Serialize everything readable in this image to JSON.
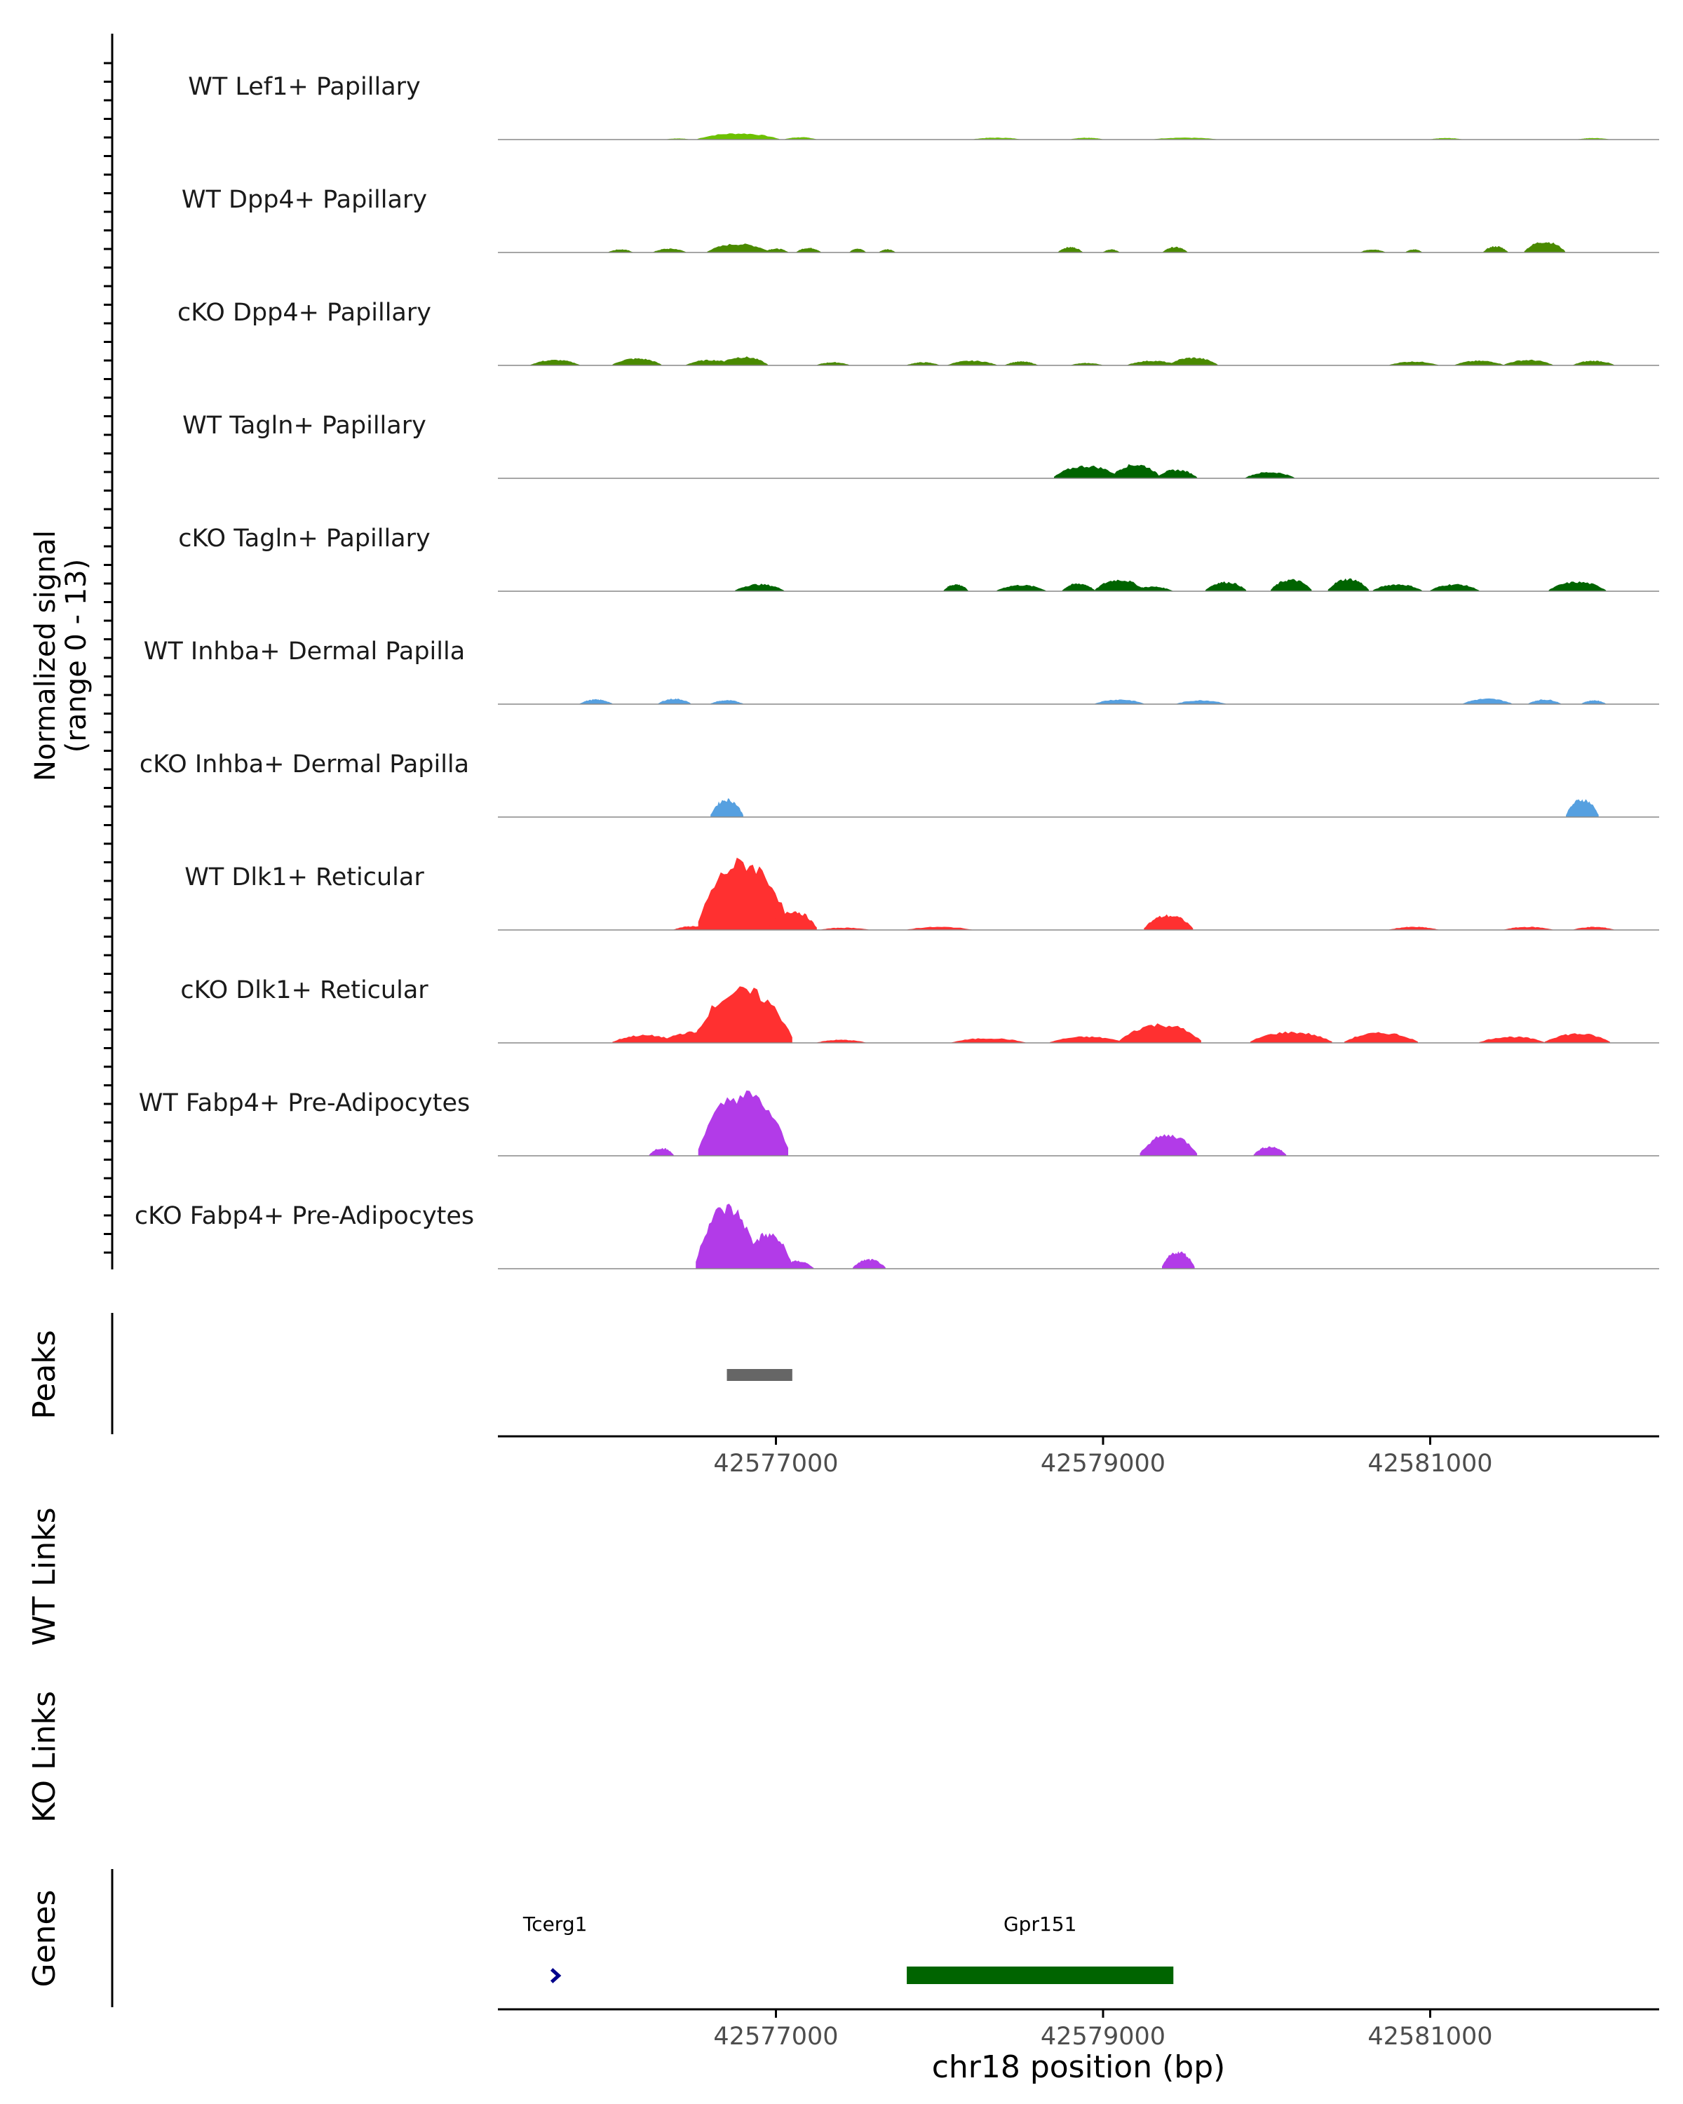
{
  "chart_data": {
    "type": "area",
    "title": "",
    "chromosome": "chr18",
    "region": [
      42575300,
      42582400
    ],
    "signal_axis_label": "Normalized signal",
    "signal_axis_range_label": "(range 0 - 13)",
    "ylim": [
      0,
      13
    ],
    "xlabel": "chr18 position (bp)",
    "x_ticks": [
      42577000,
      42579000,
      42581000
    ],
    "x_tick_labels": [
      "42577000",
      "42579000",
      "42581000"
    ],
    "tracks": [
      {
        "name": "WT Lef1+ Papillary",
        "color": "#6CC100",
        "peaks": [
          [
            42576770,
            0.8,
            500
          ],
          [
            42576400,
            0.15,
            150
          ],
          [
            42577150,
            0.3,
            200
          ],
          [
            42578350,
            0.25,
            300
          ],
          [
            42578900,
            0.25,
            200
          ],
          [
            42579500,
            0.25,
            400
          ],
          [
            42581100,
            0.2,
            200
          ],
          [
            42582000,
            0.2,
            200
          ]
        ]
      },
      {
        "name": "WT Dpp4+ Papillary",
        "color": "#4A8A00",
        "peaks": [
          [
            42576050,
            0.4,
            150
          ],
          [
            42576350,
            0.5,
            200
          ],
          [
            42576770,
            1.1,
            380
          ],
          [
            42577000,
            0.5,
            150
          ],
          [
            42577200,
            0.6,
            150
          ],
          [
            42577500,
            0.5,
            100
          ],
          [
            42577680,
            0.4,
            100
          ],
          [
            42578800,
            0.7,
            150
          ],
          [
            42579050,
            0.4,
            100
          ],
          [
            42579440,
            0.7,
            150
          ],
          [
            42580650,
            0.4,
            150
          ],
          [
            42580900,
            0.4,
            100
          ],
          [
            42581400,
            0.8,
            150
          ],
          [
            42581700,
            1.4,
            250
          ]
        ]
      },
      {
        "name": "cKO Dpp4+ Papillary",
        "color": "#4A8A00",
        "peaks": [
          [
            42575650,
            0.7,
            300
          ],
          [
            42576150,
            0.9,
            300
          ],
          [
            42576600,
            0.7,
            300
          ],
          [
            42576800,
            1.1,
            300
          ],
          [
            42577350,
            0.4,
            200
          ],
          [
            42577900,
            0.4,
            200
          ],
          [
            42578200,
            0.6,
            300
          ],
          [
            42578500,
            0.5,
            200
          ],
          [
            42578900,
            0.3,
            200
          ],
          [
            42579300,
            0.6,
            300
          ],
          [
            42579550,
            1.0,
            300
          ],
          [
            42580900,
            0.5,
            300
          ],
          [
            42581300,
            0.6,
            300
          ],
          [
            42581600,
            0.7,
            300
          ],
          [
            42582000,
            0.6,
            250
          ]
        ]
      },
      {
        "name": "WT Tagln+ Papillary",
        "color": "#006400",
        "peaks": [
          [
            42578900,
            1.6,
            400
          ],
          [
            42579200,
            1.8,
            300
          ],
          [
            42579450,
            1.1,
            250
          ],
          [
            42580020,
            0.8,
            300
          ]
        ]
      },
      {
        "name": "cKO Tagln+ Papillary",
        "color": "#006400",
        "peaks": [
          [
            42576900,
            0.9,
            300
          ],
          [
            42578100,
            0.9,
            150
          ],
          [
            42578500,
            0.8,
            300
          ],
          [
            42578850,
            1.0,
            200
          ],
          [
            42579100,
            1.5,
            300
          ],
          [
            42579300,
            0.6,
            250
          ],
          [
            42579750,
            1.2,
            250
          ],
          [
            42580150,
            1.5,
            250
          ],
          [
            42580500,
            1.6,
            250
          ],
          [
            42580800,
            0.9,
            300
          ],
          [
            42581150,
            0.9,
            300
          ],
          [
            42581900,
            1.2,
            350
          ]
        ]
      },
      {
        "name": "WT Inhba+ Dermal Papilla",
        "color": "#56A0E0",
        "peaks": [
          [
            42575900,
            0.6,
            200
          ],
          [
            42576380,
            0.7,
            200
          ],
          [
            42576700,
            0.5,
            200
          ],
          [
            42579100,
            0.6,
            300
          ],
          [
            42579600,
            0.5,
            300
          ],
          [
            42581350,
            0.7,
            300
          ],
          [
            42581700,
            0.6,
            200
          ],
          [
            42582000,
            0.5,
            150
          ]
        ]
      },
      {
        "name": "cKO Inhba+ Dermal Papilla",
        "color": "#56A0E0",
        "peaks": [
          [
            42576700,
            2.3,
            200
          ],
          [
            42581930,
            2.3,
            200
          ]
        ]
      },
      {
        "name": "WT Dlk1+ Reticular",
        "color": "#FF3030",
        "peaks": [
          [
            42576500,
            0.5,
            250
          ],
          [
            42576800,
            8.8,
            550
          ],
          [
            42577100,
            2.5,
            300
          ],
          [
            42577420,
            0.3,
            300
          ],
          [
            42578000,
            0.4,
            400
          ],
          [
            42579400,
            1.9,
            300
          ],
          [
            42580900,
            0.4,
            300
          ],
          [
            42581600,
            0.4,
            300
          ],
          [
            42582000,
            0.4,
            250
          ]
        ]
      },
      {
        "name": "cKO Dlk1+ Reticular",
        "color": "#FF3030",
        "peaks": [
          [
            42576200,
            1.0,
            400
          ],
          [
            42576500,
            1.4,
            400
          ],
          [
            42576800,
            6.8,
            600
          ],
          [
            42577400,
            0.4,
            300
          ],
          [
            42578300,
            0.6,
            450
          ],
          [
            42578900,
            0.8,
            450
          ],
          [
            42579350,
            2.4,
            500
          ],
          [
            42580150,
            1.4,
            500
          ],
          [
            42580700,
            1.3,
            450
          ],
          [
            42581500,
            0.8,
            400
          ],
          [
            42581900,
            1.2,
            400
          ]
        ]
      },
      {
        "name": "WT Fabp4+ Pre-Adipocytes",
        "color": "#B23BE8",
        "peaks": [
          [
            42576300,
            1.0,
            150
          ],
          [
            42576800,
            8.0,
            550
          ],
          [
            42579400,
            2.7,
            350
          ],
          [
            42580020,
            1.2,
            200
          ]
        ]
      },
      {
        "name": "cKO Fabp4+ Pre-Adipocytes",
        "color": "#B23BE8",
        "peaks": [
          [
            42576700,
            8.0,
            380
          ],
          [
            42576950,
            4.5,
            300
          ],
          [
            42577130,
            1.0,
            200
          ],
          [
            42577570,
            1.2,
            200
          ],
          [
            42579460,
            2.2,
            200
          ]
        ]
      }
    ],
    "peaks_track": {
      "label": "Peaks",
      "regions": [
        [
          42576700,
          42577100
        ]
      ]
    },
    "links_tracks": [
      {
        "label": "WT Links"
      },
      {
        "label": "KO Links"
      }
    ],
    "genes_track": {
      "label": "Genes",
      "genes": [
        {
          "name": "Tcerg1",
          "start": 42575620,
          "end": 42575680,
          "strand": "+",
          "color": "#00008B"
        },
        {
          "name": "Gpr151",
          "start": 42577800,
          "end": 42579430,
          "strand": "+",
          "color": "#006400"
        }
      ]
    }
  }
}
